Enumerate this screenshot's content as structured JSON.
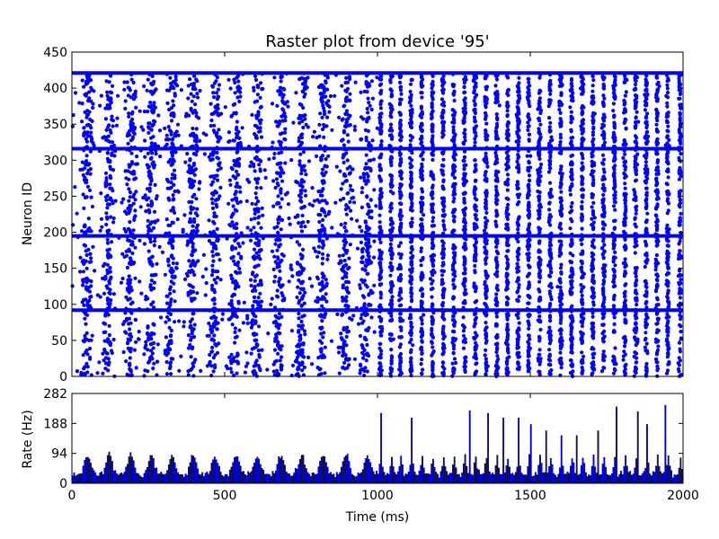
{
  "chart_data": [
    {
      "type": "scatter",
      "title": "Raster plot from device '95'",
      "xlabel": "",
      "ylabel": "Neuron ID",
      "xlim": [
        0,
        2000
      ],
      "ylim": [
        0,
        450
      ],
      "yticks": [
        "0",
        "50",
        "100",
        "150",
        "200",
        "250",
        "300",
        "350",
        "400",
        "450"
      ],
      "marker_color": "#0000ff",
      "dense_rows": [
        92,
        195,
        316,
        421
      ],
      "burst_times_early": [
        50,
        120,
        190,
        258,
        325,
        395,
        465,
        535,
        605,
        680,
        750,
        820,
        895,
        965
      ],
      "burst_times_late": [
        1010,
        1045,
        1075,
        1110,
        1145,
        1180,
        1215,
        1250,
        1285,
        1320,
        1355,
        1390,
        1425,
        1460,
        1495,
        1530,
        1565,
        1600,
        1635,
        1670,
        1705,
        1740,
        1775,
        1810,
        1845,
        1880,
        1915,
        1950,
        1990
      ]
    },
    {
      "type": "bar",
      "title": "",
      "xlabel": "Time (ms)",
      "ylabel": "Rate (Hz)",
      "xlim": [
        0,
        2000
      ],
      "ylim": [
        0,
        282
      ],
      "xticks": [
        "0",
        "500",
        "1000",
        "1500",
        "2000"
      ],
      "yticks": [
        "0",
        "94",
        "188",
        "282"
      ],
      "bar_color": "#0000ff",
      "bin_ms": 5,
      "peaks": [
        {
          "x": 1010,
          "y": 220
        },
        {
          "x": 1110,
          "y": 205
        },
        {
          "x": 1300,
          "y": 228
        },
        {
          "x": 1360,
          "y": 220
        },
        {
          "x": 1410,
          "y": 205
        },
        {
          "x": 1460,
          "y": 205
        },
        {
          "x": 1500,
          "y": 185
        },
        {
          "x": 1550,
          "y": 165
        },
        {
          "x": 1600,
          "y": 150
        },
        {
          "x": 1650,
          "y": 150
        },
        {
          "x": 1720,
          "y": 165
        },
        {
          "x": 1780,
          "y": 240
        },
        {
          "x": 1850,
          "y": 225
        },
        {
          "x": 1880,
          "y": 185
        },
        {
          "x": 1940,
          "y": 245
        }
      ]
    }
  ]
}
